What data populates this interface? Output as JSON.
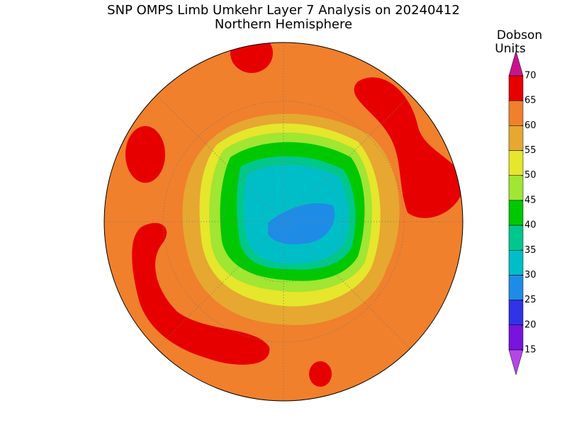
{
  "title": "SNP OMPS Limb Umkehr Layer 7 Analysis on 20240412",
  "subtitle": "Northern Hemisphere",
  "colorbar": {
    "label": [
      "Dobson",
      "Units"
    ],
    "ticks": [
      70,
      65,
      60,
      55,
      50,
      45,
      40,
      35,
      30,
      25,
      20,
      15
    ],
    "colors": [
      "#c8148c",
      "#e60000",
      "#f0802c",
      "#e6a830",
      "#e6e62c",
      "#a0e632",
      "#00c800",
      "#00c88c",
      "#00bec8",
      "#1e8ce6",
      "#3232e6",
      "#7814dc",
      "#b446e6"
    ]
  }
}
